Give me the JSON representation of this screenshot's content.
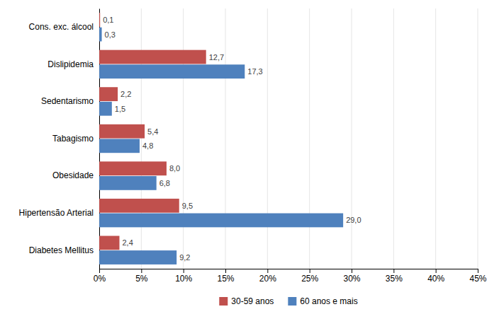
{
  "chart_data": {
    "type": "bar",
    "orientation": "horizontal",
    "categories": [
      "Cons. exc. álcool",
      "Dislipidemia",
      "Sedentarismo",
      "Tabagismo",
      "Obesidade",
      "Hipertensão Arterial",
      "Diabetes Mellitus"
    ],
    "series": [
      {
        "name": "30-59 anos",
        "color": "#c0504d",
        "values": [
          0.1,
          12.7,
          2.2,
          5.4,
          8.0,
          9.5,
          2.4
        ],
        "value_labels": [
          "0,1",
          "12,7",
          "2,2",
          "5,4",
          "8,0",
          "9,5",
          "2,4"
        ]
      },
      {
        "name": "60 anos e mais",
        "color": "#4f81bd",
        "values": [
          0.3,
          17.3,
          1.5,
          4.8,
          6.8,
          29.0,
          9.2
        ],
        "value_labels": [
          "0,3",
          "17,3",
          "1,5",
          "4,8",
          "6,8",
          "29,0",
          "9,2"
        ]
      }
    ],
    "xlim": [
      0,
      45
    ],
    "xticks": [
      {
        "value": 0,
        "label": "0%"
      },
      {
        "value": 5,
        "label": "5%"
      },
      {
        "value": 10,
        "label": "10%"
      },
      {
        "value": 15,
        "label": "15%"
      },
      {
        "value": 20,
        "label": "20%"
      },
      {
        "value": 25,
        "label": "25%"
      },
      {
        "value": 30,
        "label": "30%"
      },
      {
        "value": 35,
        "label": "35%"
      },
      {
        "value": 40,
        "label": "40%"
      },
      {
        "value": 45,
        "label": "45%"
      }
    ],
    "grid": true,
    "data_labels": true,
    "legend": "bottom"
  }
}
